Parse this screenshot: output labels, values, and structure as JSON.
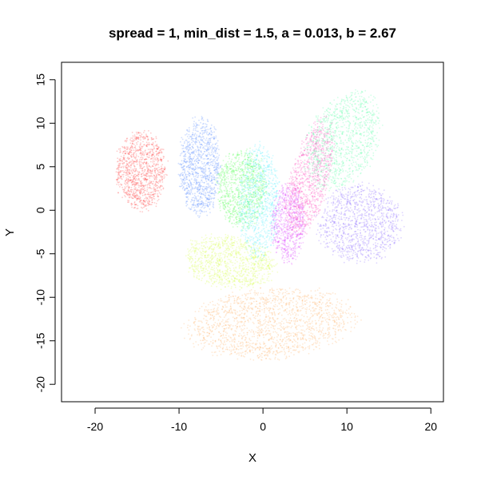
{
  "chart_data": {
    "type": "scatter",
    "title": "spread = 1, min_dist = 1.5, a = 0.013, b = 2.67",
    "xlabel": "X",
    "ylabel": "Y",
    "xlim": [
      -24,
      21.5
    ],
    "ylim": [
      -22,
      17
    ],
    "x_ticks": [
      -20,
      -10,
      0,
      10,
      20
    ],
    "y_ticks": [
      -20,
      -15,
      -10,
      -5,
      0,
      5,
      10,
      15
    ],
    "x_tick_labels": [
      "-20",
      "-10",
      "0",
      "10",
      "20"
    ],
    "y_tick_labels": [
      "-20",
      "-15",
      "-10",
      "-5",
      "0",
      "5",
      "10",
      "15"
    ],
    "grid": false,
    "legend": "none",
    "series": [
      {
        "color": "#ff4d4d",
        "center": [
          -14.5,
          4.5
        ],
        "spread": [
          3.0,
          4.5
        ],
        "angle_deg": 0,
        "points": 1100
      },
      {
        "color": "#5a8cff",
        "center": [
          -7.5,
          5.0
        ],
        "spread": [
          2.5,
          5.5
        ],
        "angle_deg": 0,
        "points": 1000
      },
      {
        "color": "#5cff5c",
        "center": [
          -2.5,
          2.5
        ],
        "spread": [
          3.0,
          4.5
        ],
        "angle_deg": 0,
        "points": 1000
      },
      {
        "color": "#5cf0ff",
        "center": [
          -0.5,
          1.0
        ],
        "spread": [
          2.5,
          6.5
        ],
        "angle_deg": 0,
        "points": 900
      },
      {
        "color": "#e052ff",
        "center": [
          3.0,
          -1.5
        ],
        "spread": [
          2.0,
          4.5
        ],
        "angle_deg": 0,
        "points": 800
      },
      {
        "color": "#ff4dc0",
        "center": [
          5.5,
          3.5
        ],
        "spread": [
          2.3,
          7.0
        ],
        "angle_deg": -15,
        "points": 1000
      },
      {
        "color": "#5cffa8",
        "center": [
          9.5,
          8.0
        ],
        "spread": [
          4.0,
          6.0
        ],
        "angle_deg": -30,
        "points": 1100
      },
      {
        "color": "#8c6bff",
        "center": [
          11.5,
          -1.5
        ],
        "spread": [
          5.0,
          4.5
        ],
        "angle_deg": 0,
        "points": 1100
      },
      {
        "color": "#d9ff4d",
        "center": [
          -4.0,
          -6.0
        ],
        "spread": [
          5.5,
          3.0
        ],
        "angle_deg": -10,
        "points": 1000
      },
      {
        "color": "#ffb066",
        "center": [
          1.0,
          -13.0
        ],
        "spread": [
          10.0,
          4.0
        ],
        "angle_deg": 5,
        "points": 1600
      }
    ]
  }
}
